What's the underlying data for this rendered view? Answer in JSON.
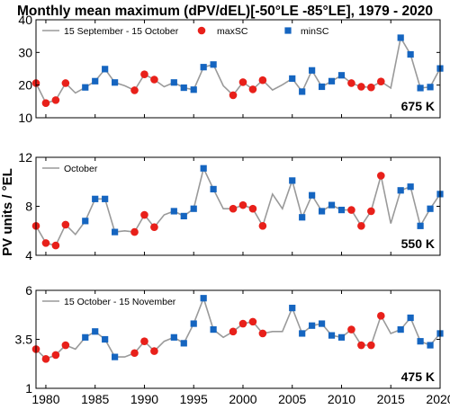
{
  "chart_data": {
    "type": "line",
    "title": "Monthly mean maximum (dPV/dEL)[-50°LE -85°LE], 1979 - 2020",
    "ylabel": "PV units / °EL",
    "x_ticks": [
      "1980",
      "1985",
      "1990",
      "1995",
      "2000",
      "2005",
      "2010",
      "2015",
      "2020"
    ],
    "xlim": [
      1979,
      2020
    ],
    "grid": false,
    "colors": {
      "line": "#9a9a9a",
      "maxSC": "#e8201a",
      "minSC": "#1565c0"
    },
    "legend_markers": [
      "maxSC",
      "minSC"
    ],
    "panels": [
      {
        "level": "675 K",
        "series_name": "15 September - 15 October",
        "ylim": [
          10,
          40
        ],
        "y_ticks": [
          "10",
          "20",
          "30",
          "40"
        ],
        "x": [
          1979,
          1980,
          1981,
          1982,
          1983,
          1984,
          1985,
          1986,
          1987,
          1988,
          1989,
          1990,
          1991,
          1992,
          1993,
          1994,
          1995,
          1996,
          1997,
          1998,
          1999,
          2000,
          2001,
          2002,
          2003,
          2004,
          2005,
          2006,
          2007,
          2008,
          2009,
          2010,
          2011,
          2012,
          2013,
          2014,
          2015,
          2016,
          2017,
          2018,
          2019,
          2020
        ],
        "y": [
          20.6,
          14.5,
          15.4,
          20.6,
          17.6,
          19.3,
          21.2,
          24.9,
          20.8,
          19.8,
          18.4,
          23.3,
          21.7,
          19.5,
          20.8,
          19.2,
          18.6,
          25.5,
          26.3,
          19.8,
          16.9,
          20.9,
          18.7,
          21.5,
          18.5,
          20.1,
          22.0,
          18.0,
          24.5,
          19.5,
          21.2,
          23.0,
          20.6,
          19.5,
          19.3,
          21.1,
          19.1,
          34.5,
          29.4,
          19.1,
          19.4,
          25.1
        ],
        "markers": [
          "maxSC",
          "maxSC",
          "maxSC",
          "maxSC",
          "none",
          "minSC",
          "minSC",
          "minSC",
          "minSC",
          "none",
          "maxSC",
          "maxSC",
          "maxSC",
          "none",
          "minSC",
          "minSC",
          "minSC",
          "minSC",
          "minSC",
          "none",
          "maxSC",
          "maxSC",
          "maxSC",
          "maxSC",
          "none",
          "none",
          "minSC",
          "minSC",
          "minSC",
          "minSC",
          "minSC",
          "minSC",
          "maxSC",
          "maxSC",
          "maxSC",
          "maxSC",
          "none",
          "minSC",
          "minSC",
          "minSC",
          "minSC",
          "minSC"
        ]
      },
      {
        "level": "550 K",
        "series_name": "October",
        "ylim": [
          4,
          12
        ],
        "y_ticks": [
          "4",
          "8",
          "12"
        ],
        "x": [
          1979,
          1980,
          1981,
          1982,
          1983,
          1984,
          1985,
          1986,
          1987,
          1988,
          1989,
          1990,
          1991,
          1992,
          1993,
          1994,
          1995,
          1996,
          1997,
          1998,
          1999,
          2000,
          2001,
          2002,
          2003,
          2004,
          2005,
          2006,
          2007,
          2008,
          2009,
          2010,
          2011,
          2012,
          2013,
          2014,
          2015,
          2016,
          2017,
          2018,
          2019,
          2020
        ],
        "y": [
          6.4,
          5.0,
          4.8,
          6.5,
          5.7,
          6.8,
          8.6,
          8.6,
          5.9,
          6.0,
          5.9,
          7.3,
          6.3,
          7.3,
          7.6,
          7.2,
          7.8,
          11.1,
          9.4,
          7.8,
          7.8,
          8.1,
          7.8,
          6.4,
          9.0,
          7.8,
          10.1,
          7.1,
          8.9,
          7.6,
          8.1,
          7.7,
          7.7,
          6.4,
          7.6,
          10.5,
          6.6,
          9.3,
          9.6,
          6.4,
          7.8,
          9.0
        ],
        "markers": [
          "maxSC",
          "maxSC",
          "maxSC",
          "maxSC",
          "none",
          "minSC",
          "minSC",
          "minSC",
          "minSC",
          "none",
          "maxSC",
          "maxSC",
          "maxSC",
          "none",
          "minSC",
          "minSC",
          "minSC",
          "minSC",
          "minSC",
          "none",
          "maxSC",
          "maxSC",
          "maxSC",
          "maxSC",
          "none",
          "none",
          "minSC",
          "minSC",
          "minSC",
          "minSC",
          "minSC",
          "minSC",
          "maxSC",
          "maxSC",
          "maxSC",
          "maxSC",
          "none",
          "minSC",
          "minSC",
          "minSC",
          "minSC",
          "minSC"
        ]
      },
      {
        "level": "475 K",
        "series_name": "15 October - 15 November",
        "ylim": [
          1,
          6
        ],
        "y_ticks": [
          "1",
          "3.5",
          "6"
        ],
        "x": [
          1979,
          1980,
          1981,
          1982,
          1983,
          1984,
          1985,
          1986,
          1987,
          1988,
          1989,
          1990,
          1991,
          1992,
          1993,
          1994,
          1995,
          1996,
          1997,
          1998,
          1999,
          2000,
          2001,
          2002,
          2003,
          2004,
          2005,
          2006,
          2007,
          2008,
          2009,
          2010,
          2011,
          2012,
          2013,
          2014,
          2015,
          2016,
          2017,
          2018,
          2019,
          2020
        ],
        "y": [
          3.0,
          2.5,
          2.7,
          3.2,
          3.0,
          3.6,
          3.9,
          3.5,
          2.6,
          2.6,
          2.8,
          3.4,
          2.9,
          3.4,
          3.6,
          3.3,
          4.3,
          5.6,
          4.0,
          3.6,
          3.9,
          4.3,
          4.4,
          3.8,
          3.9,
          3.9,
          5.1,
          3.8,
          4.2,
          4.3,
          3.7,
          3.6,
          4.0,
          3.2,
          3.2,
          4.7,
          3.8,
          4.0,
          4.6,
          3.4,
          3.2,
          3.8
        ],
        "markers": [
          "maxSC",
          "maxSC",
          "maxSC",
          "maxSC",
          "none",
          "minSC",
          "minSC",
          "minSC",
          "minSC",
          "none",
          "maxSC",
          "maxSC",
          "maxSC",
          "none",
          "minSC",
          "minSC",
          "minSC",
          "minSC",
          "minSC",
          "none",
          "maxSC",
          "maxSC",
          "maxSC",
          "maxSC",
          "none",
          "none",
          "minSC",
          "minSC",
          "minSC",
          "minSC",
          "minSC",
          "minSC",
          "maxSC",
          "maxSC",
          "maxSC",
          "maxSC",
          "none",
          "minSC",
          "minSC",
          "minSC",
          "minSC",
          "minSC"
        ]
      }
    ]
  }
}
